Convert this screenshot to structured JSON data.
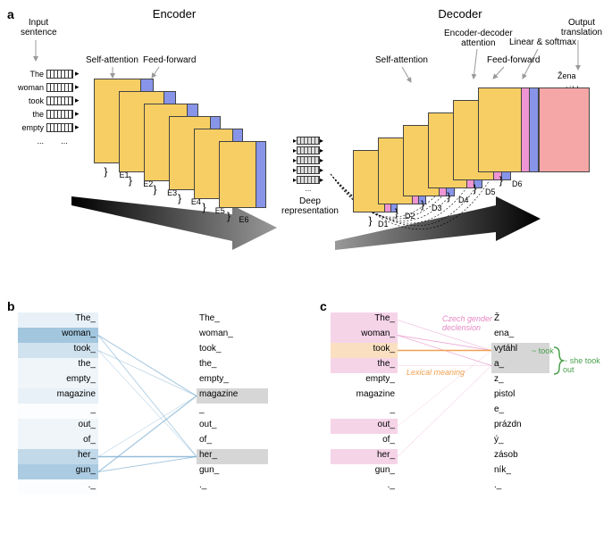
{
  "panels": {
    "a": "a",
    "b": "b",
    "c": "c"
  },
  "sections": {
    "encoder": "Encoder",
    "decoder": "Decoder"
  },
  "labels": {
    "input": "Input\nsentence",
    "selfAttn": "Self-attention",
    "feedFwd": "Feed-forward",
    "encDecAttn": "Encoder-decoder\nattention",
    "feedFwd2": "Feed-forward",
    "selfAttn2": "Self-attention",
    "linSoft": "Linear & softmax",
    "output": "Output\ntranslation",
    "deepRep": "Deep\nrepresentation",
    "czechDecl": "Czech gender\ndeclension",
    "lexMean": "Lexical meaning",
    "tookNote": "~ took",
    "sheTook": "~ she took out"
  },
  "inputWords": [
    "The",
    "woman",
    "took",
    "the",
    "empty",
    "..."
  ],
  "outputWords": [
    "Žena",
    "vytáhla",
    "z",
    "pistole",
    "prázdný",
    "..."
  ],
  "encoderLayers": [
    "E1",
    "E2",
    "E3",
    "E4",
    "E5",
    "E6"
  ],
  "decoderLayers": [
    "D1",
    "D2",
    "D3",
    "D4",
    "D5",
    "D6"
  ],
  "colors": {
    "selfAttn": "#f7ce63",
    "feedFwd": "#8794e8",
    "encDec": "#f095d3",
    "output": "#f5a6a6",
    "gray": "#b8b8b8",
    "darkgray": "#555",
    "lightblue": "#c5d9e8",
    "medblue": "#7daed1",
    "attngray": "#d6d6d6",
    "pink": "#e687c4",
    "lightpink": "#f5d4e8",
    "orange": "#f0a050",
    "lightorange": "#fae0c0",
    "green": "#4a9f4a"
  },
  "panelB": {
    "leftWords": [
      "The_",
      "woman_",
      "took_",
      "the_",
      "empty_",
      "magazine",
      "_",
      "out_",
      "of_",
      "her_",
      "gun_",
      "._"
    ],
    "rightWords": [
      "The_",
      "woman_",
      "took_",
      "the_",
      "empty_",
      "magazine",
      "_",
      "out_",
      "of_",
      "her_",
      "gun_",
      "._"
    ],
    "leftShades": [
      0.15,
      0.6,
      0.3,
      0.1,
      0.1,
      0.15,
      0.02,
      0.1,
      0.1,
      0.4,
      0.55,
      0.02
    ],
    "rightHighlight": [
      5,
      9
    ],
    "lines": [
      {
        "from": 1,
        "to": 5,
        "w": 0.35
      },
      {
        "from": 2,
        "to": 5,
        "w": 0.25
      },
      {
        "from": 9,
        "to": 5,
        "w": 0.2
      },
      {
        "from": 10,
        "to": 5,
        "w": 0.4
      },
      {
        "from": 1,
        "to": 9,
        "w": 0.3
      },
      {
        "from": 2,
        "to": 9,
        "w": 0.2
      },
      {
        "from": 9,
        "to": 9,
        "w": 0.5
      },
      {
        "from": 10,
        "to": 9,
        "w": 0.35
      }
    ]
  },
  "panelC": {
    "leftWords": [
      "The_",
      "woman_",
      "took_",
      "the_",
      "empty_",
      "magazine",
      "_",
      "out_",
      "of_",
      "her_",
      "gun_",
      "._"
    ],
    "rightWords": [
      "Ž",
      "ena_",
      "vytáhl",
      "a_",
      "z_",
      "pistol",
      "e_",
      "prázdn",
      "ý_",
      "zásob",
      "ník_",
      "._"
    ],
    "leftPink": [
      0,
      1,
      3,
      7,
      9
    ],
    "leftOrange": [
      2
    ],
    "rightHighlight": [
      2,
      3
    ],
    "rightGreen": [
      2,
      3
    ],
    "pinkLines": [
      {
        "from": 0,
        "to": 2,
        "w": 0.25
      },
      {
        "from": 1,
        "to": 2,
        "w": 0.35
      },
      {
        "from": 1,
        "to": 3,
        "w": 0.3
      },
      {
        "from": 3,
        "to": 3,
        "w": 0.15
      },
      {
        "from": 7,
        "to": 2,
        "w": 0.15
      },
      {
        "from": 9,
        "to": 3,
        "w": 0.2
      }
    ],
    "orangeLines": [
      {
        "from": 2,
        "to": 2,
        "w": 0.5
      }
    ]
  }
}
